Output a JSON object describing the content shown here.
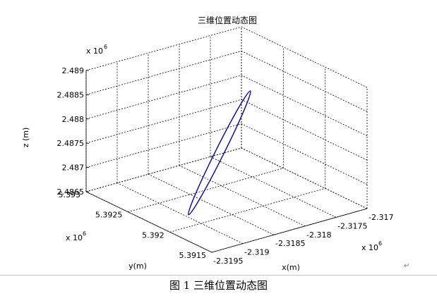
{
  "chart_data": {
    "type": "line",
    "title": "三维位置动态图",
    "xlabel": "x(m)",
    "ylabel": "y(m)",
    "zlabel": "z (m)",
    "x_exponent": "x 10",
    "x_exponent_power": "6",
    "y_exponent": "x 10",
    "y_exponent_power": "6",
    "z_exponent": "x 10",
    "z_exponent_power": "6",
    "xlim": [
      -2.3195,
      -2.317
    ],
    "ylim": [
      5.3915,
      5.393
    ],
    "zlim": [
      2.4865,
      2.489
    ],
    "x_ticks": [
      -2.3195,
      -2.319,
      -2.3185,
      -2.318,
      -2.3175,
      -2.317
    ],
    "x_tick_labels": [
      "-2.3195",
      "-2.319",
      "-2.3185",
      "-2.318",
      "-2.3175",
      "-2.317"
    ],
    "y_ticks": [
      5.3915,
      5.392,
      5.3925,
      5.393
    ],
    "y_tick_labels": [
      "5.3915",
      "5.392",
      "5.3925",
      "5.393"
    ],
    "z_ticks": [
      2.4865,
      2.487,
      2.4875,
      2.488,
      2.4885,
      2.489
    ],
    "z_tick_labels": [
      "2.4865",
      "2.487",
      "2.4875",
      "2.488",
      "2.4885",
      "2.489"
    ],
    "grid": true,
    "series": [
      {
        "color": "#0000cc",
        "shape": "closed ellipse",
        "points": [
          {
            "x": -2.3178,
            "y": 5.3923,
            "z": 2.4885
          },
          {
            "x": -2.3182,
            "y": 5.3922,
            "z": 2.4879
          },
          {
            "x": -2.3187,
            "y": 5.3921,
            "z": 2.4874
          },
          {
            "x": -2.3192,
            "y": 5.392,
            "z": 2.4868
          },
          {
            "x": -2.3187,
            "y": 5.392,
            "z": 2.4872
          },
          {
            "x": -2.3182,
            "y": 5.3922,
            "z": 2.4878
          },
          {
            "x": -2.3178,
            "y": 5.3923,
            "z": 2.4885
          }
        ]
      }
    ]
  },
  "caption": "图 1  三维位置动态图",
  "caption_mark": "↵"
}
